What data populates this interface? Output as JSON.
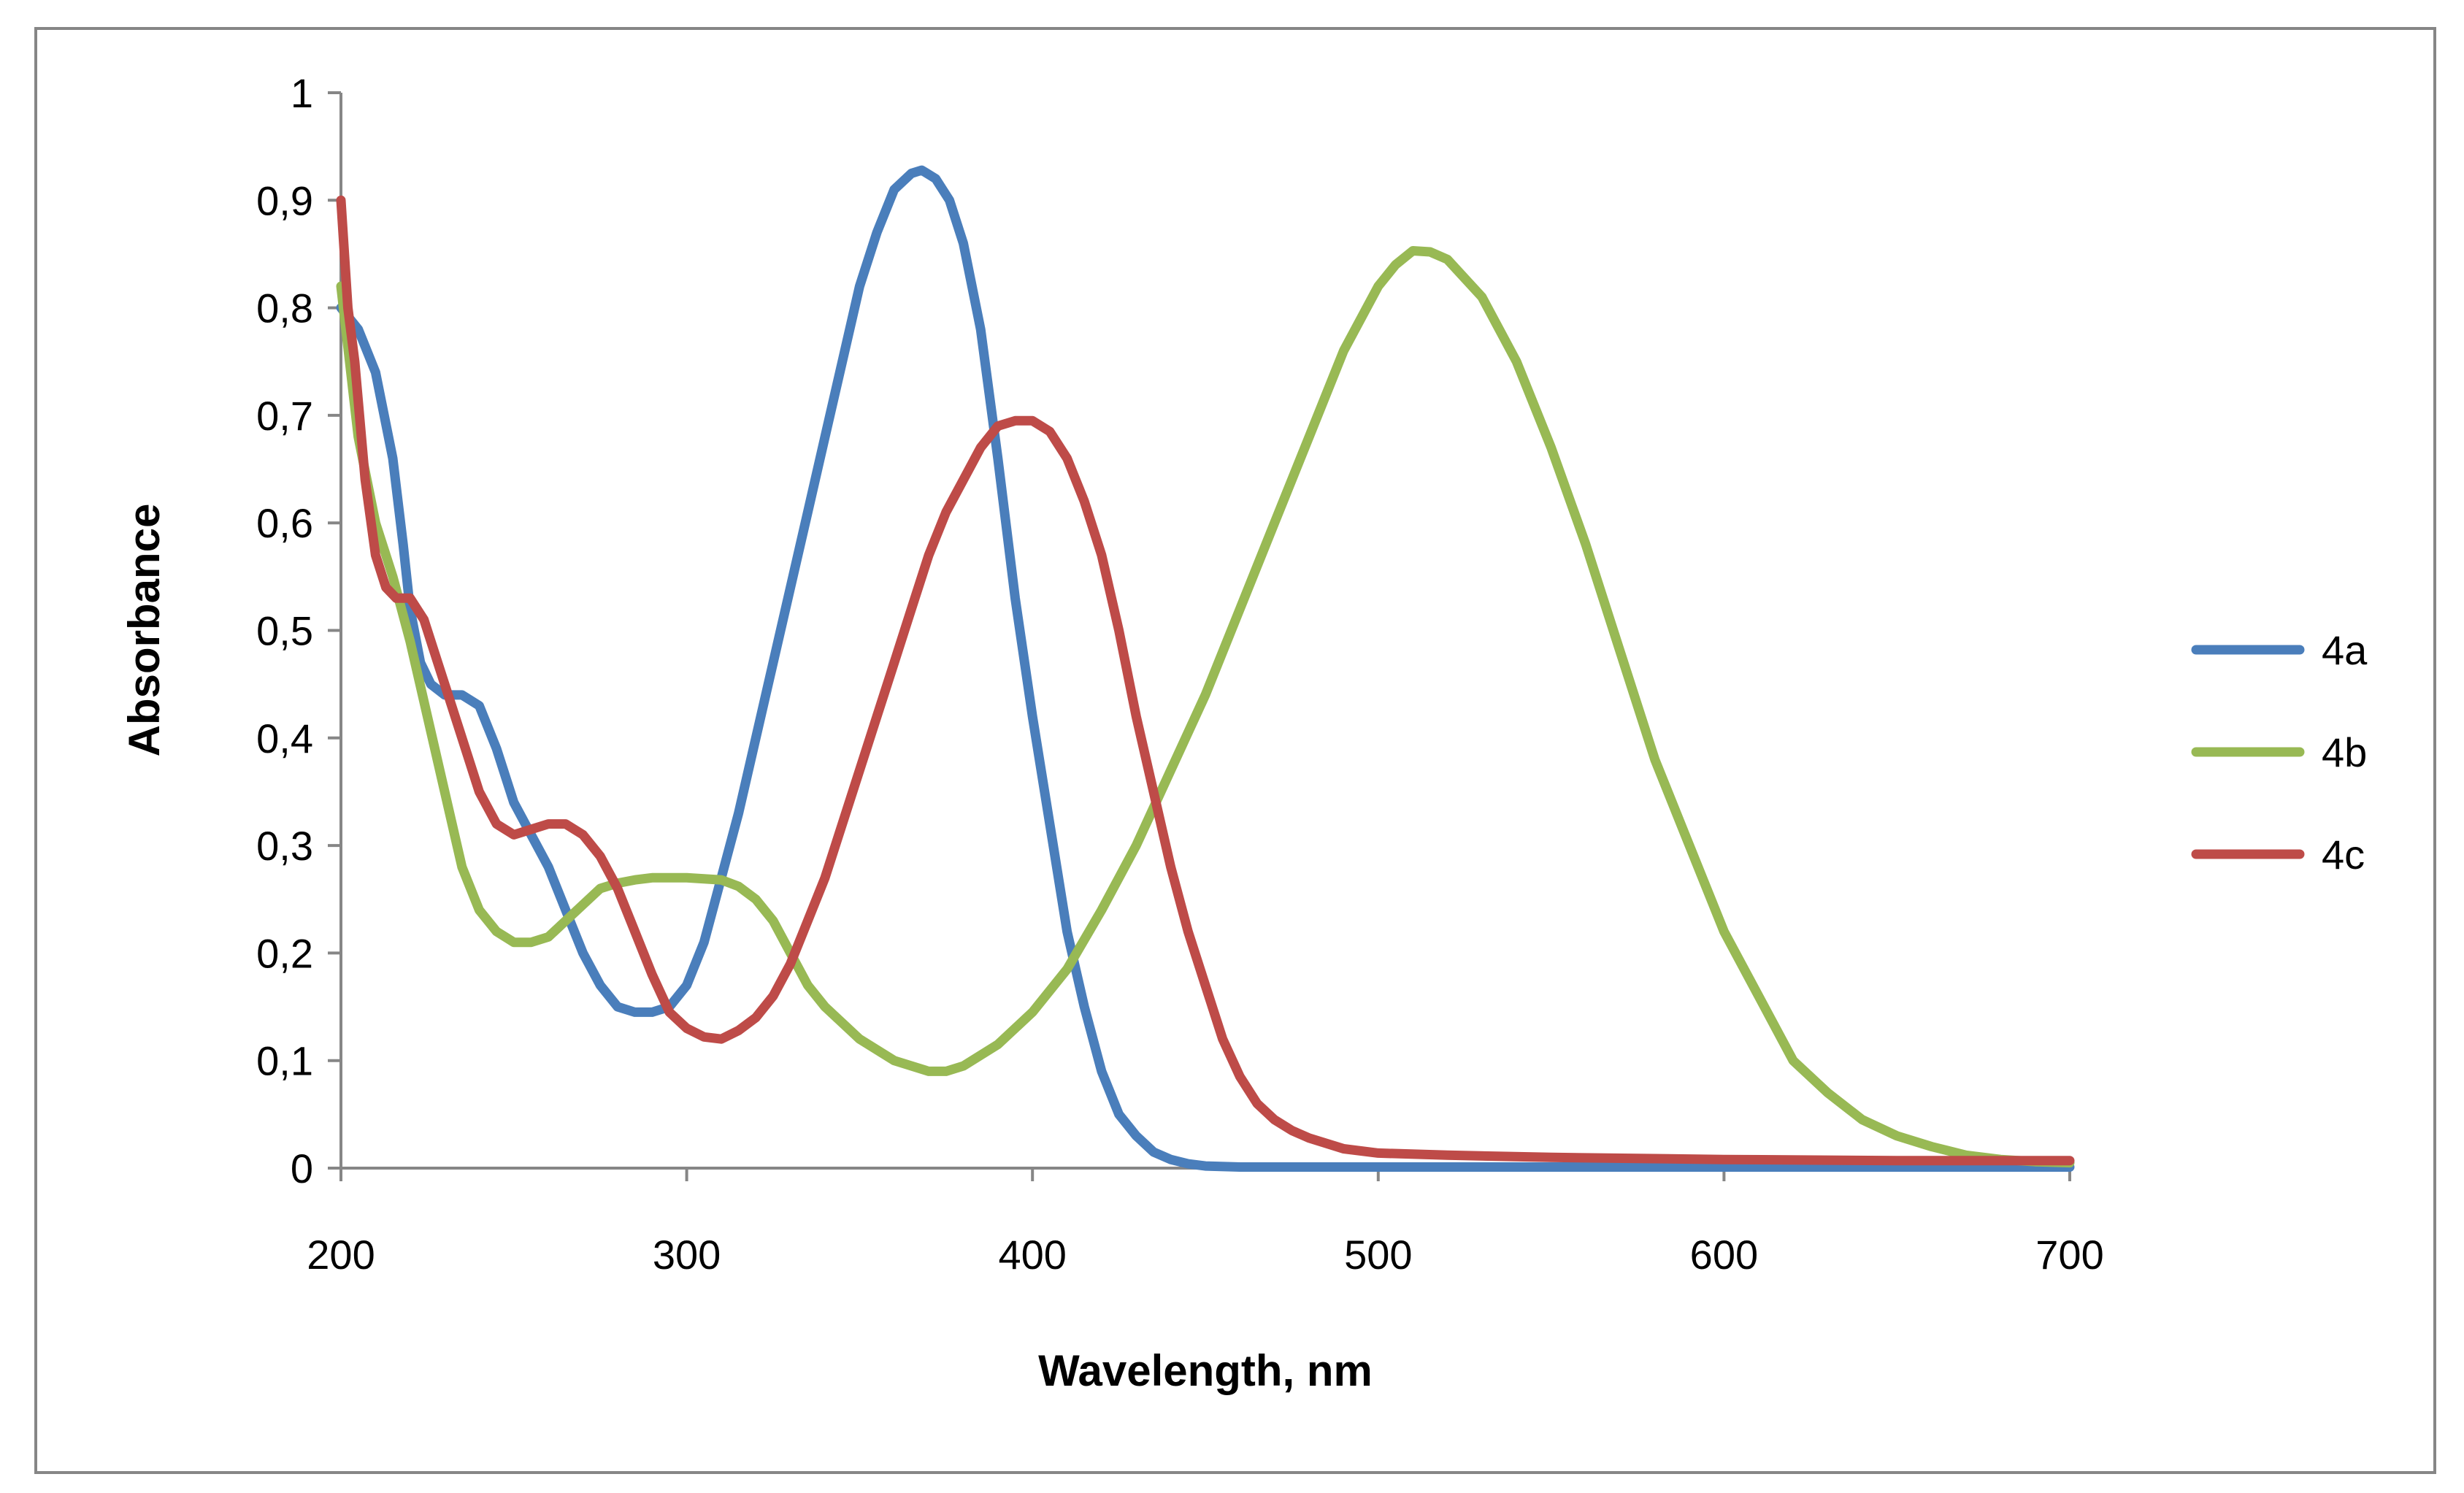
{
  "colors": {
    "s4a": "#4a7ebb",
    "s4b": "#98b954",
    "s4c": "#be4b48",
    "axis": "#868686",
    "border": "#868686"
  },
  "chart_data": {
    "type": "line",
    "title": "",
    "xlabel": "Wavelength, nm",
    "ylabel": "Absorbance",
    "xlim": [
      200,
      700
    ],
    "ylim": [
      0,
      1
    ],
    "xticks": [
      {
        "value": 200,
        "label": "200"
      },
      {
        "value": 300,
        "label": "300"
      },
      {
        "value": 400,
        "label": "400"
      },
      {
        "value": 500,
        "label": "500"
      },
      {
        "value": 600,
        "label": "600"
      },
      {
        "value": 700,
        "label": "700"
      }
    ],
    "yticks": [
      {
        "value": 0,
        "label": "0"
      },
      {
        "value": 0.1,
        "label": "0,1"
      },
      {
        "value": 0.2,
        "label": "0,2"
      },
      {
        "value": 0.3,
        "label": "0,3"
      },
      {
        "value": 0.4,
        "label": "0,4"
      },
      {
        "value": 0.5,
        "label": "0,5"
      },
      {
        "value": 0.6,
        "label": "0,6"
      },
      {
        "value": 0.7,
        "label": "0,7"
      },
      {
        "value": 0.8,
        "label": "0,8"
      },
      {
        "value": 0.9,
        "label": "0,9"
      },
      {
        "value": 1,
        "label": "1"
      }
    ],
    "grid": false,
    "legend_position": "right",
    "series": [
      {
        "name": "4a",
        "color": "#4a7ebb",
        "x": [
          200,
          205,
          210,
          215,
          218,
          220,
          223,
          226,
          230,
          235,
          240,
          245,
          250,
          255,
          260,
          265,
          270,
          275,
          280,
          285,
          290,
          295,
          300,
          305,
          310,
          315,
          320,
          325,
          330,
          335,
          340,
          345,
          350,
          355,
          360,
          365,
          368,
          372,
          376,
          380,
          385,
          390,
          395,
          400,
          405,
          410,
          415,
          420,
          425,
          430,
          435,
          440,
          445,
          450,
          460,
          480,
          500,
          550,
          600,
          650,
          700
        ],
        "y": [
          0.8,
          0.78,
          0.74,
          0.66,
          0.58,
          0.52,
          0.47,
          0.45,
          0.44,
          0.44,
          0.43,
          0.39,
          0.34,
          0.31,
          0.28,
          0.24,
          0.2,
          0.17,
          0.15,
          0.145,
          0.145,
          0.15,
          0.17,
          0.21,
          0.27,
          0.33,
          0.4,
          0.47,
          0.54,
          0.61,
          0.68,
          0.75,
          0.82,
          0.87,
          0.91,
          0.925,
          0.928,
          0.92,
          0.9,
          0.86,
          0.78,
          0.66,
          0.53,
          0.42,
          0.32,
          0.22,
          0.15,
          0.09,
          0.05,
          0.03,
          0.015,
          0.008,
          0.004,
          0.002,
          0.001,
          0.001,
          0.001,
          0.001,
          0.001,
          0.001,
          0.001
        ]
      },
      {
        "name": "4b",
        "color": "#98b954",
        "x": [
          200,
          205,
          210,
          215,
          220,
          225,
          230,
          235,
          240,
          245,
          250,
          255,
          260,
          265,
          270,
          275,
          280,
          285,
          290,
          300,
          310,
          315,
          320,
          325,
          330,
          335,
          340,
          350,
          360,
          370,
          375,
          380,
          390,
          400,
          410,
          420,
          430,
          440,
          450,
          460,
          470,
          480,
          490,
          500,
          505,
          510,
          515,
          520,
          530,
          540,
          550,
          560,
          570,
          580,
          590,
          600,
          610,
          620,
          630,
          640,
          650,
          660,
          670,
          680,
          690,
          700
        ],
        "y": [
          0.82,
          0.68,
          0.6,
          0.55,
          0.49,
          0.42,
          0.35,
          0.28,
          0.24,
          0.22,
          0.21,
          0.21,
          0.215,
          0.23,
          0.245,
          0.26,
          0.265,
          0.268,
          0.27,
          0.27,
          0.268,
          0.262,
          0.25,
          0.23,
          0.2,
          0.17,
          0.15,
          0.12,
          0.1,
          0.09,
          0.09,
          0.095,
          0.115,
          0.145,
          0.185,
          0.24,
          0.3,
          0.37,
          0.44,
          0.52,
          0.6,
          0.68,
          0.76,
          0.82,
          0.84,
          0.853,
          0.852,
          0.845,
          0.81,
          0.75,
          0.67,
          0.58,
          0.48,
          0.38,
          0.3,
          0.22,
          0.16,
          0.1,
          0.07,
          0.045,
          0.03,
          0.02,
          0.012,
          0.008,
          0.006,
          0.005
        ]
      },
      {
        "name": "4c",
        "color": "#be4b48",
        "x": [
          200,
          202,
          204,
          207,
          210,
          213,
          216,
          220,
          224,
          228,
          232,
          236,
          240,
          245,
          250,
          255,
          260,
          265,
          270,
          275,
          280,
          285,
          290,
          295,
          300,
          305,
          310,
          315,
          320,
          325,
          330,
          335,
          340,
          345,
          350,
          355,
          360,
          365,
          370,
          375,
          380,
          385,
          390,
          395,
          400,
          405,
          410,
          415,
          420,
          425,
          430,
          435,
          440,
          445,
          450,
          455,
          460,
          465,
          470,
          475,
          480,
          490,
          500,
          520,
          550,
          600,
          650,
          700
        ],
        "y": [
          0.9,
          0.8,
          0.75,
          0.64,
          0.57,
          0.54,
          0.53,
          0.53,
          0.51,
          0.47,
          0.43,
          0.39,
          0.35,
          0.32,
          0.31,
          0.315,
          0.32,
          0.32,
          0.31,
          0.29,
          0.26,
          0.22,
          0.18,
          0.145,
          0.13,
          0.122,
          0.12,
          0.128,
          0.14,
          0.16,
          0.19,
          0.23,
          0.27,
          0.32,
          0.37,
          0.42,
          0.47,
          0.52,
          0.57,
          0.61,
          0.64,
          0.67,
          0.69,
          0.695,
          0.695,
          0.685,
          0.66,
          0.62,
          0.57,
          0.5,
          0.42,
          0.35,
          0.28,
          0.22,
          0.17,
          0.12,
          0.085,
          0.06,
          0.045,
          0.035,
          0.028,
          0.018,
          0.014,
          0.012,
          0.01,
          0.008,
          0.007,
          0.007
        ]
      }
    ]
  }
}
